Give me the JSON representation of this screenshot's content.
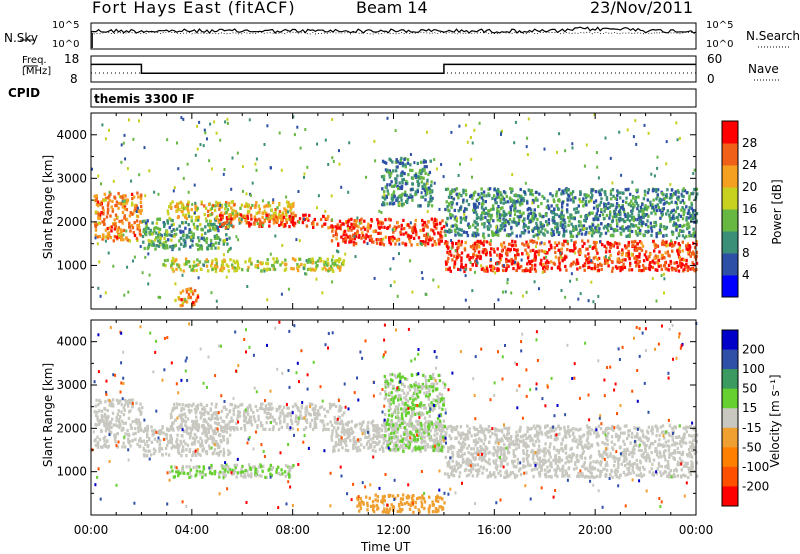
{
  "header": {
    "station": "Fort Hays East (fitACF)",
    "beam": "Beam 14",
    "date": "23/Nov/2011"
  },
  "noise_panel": {
    "left_label": "N.Sky",
    "right_label": "N.Search",
    "left_ticks": [
      "10^5",
      "10^0"
    ],
    "right_ticks": [
      "10^5",
      "10^0"
    ]
  },
  "freq_panel": {
    "left_label_line1": "Freq.",
    "left_label_line2": "[MHz]",
    "right_label": "Nave",
    "left_ticks": [
      "18",
      "8"
    ],
    "right_ticks": [
      "60",
      "0"
    ]
  },
  "cpid_panel": {
    "label": "CPID",
    "text": "themis 3300 IF"
  },
  "colors": {
    "power_scale": [
      "#0000ff",
      "#2d4fa5",
      "#3b8f78",
      "#66b843",
      "#c8d020",
      "#f5a020",
      "#f06018",
      "#ff0000"
    ],
    "velocity_scale": [
      "#0000c8",
      "#3050a8",
      "#3a9a60",
      "#66d030",
      "#c8c8c0",
      "#f0a030",
      "#ff7f00",
      "#ff5000",
      "#ff0000"
    ],
    "ground_scatter": "#b8b8b0"
  },
  "chart_data": [
    {
      "type": "heatmap",
      "name": "power",
      "xlabel": "",
      "ylabel": "Slant Range [km]",
      "xlim": [
        "00:00",
        "24:00"
      ],
      "ylim": [
        0,
        4500
      ],
      "yticks": [
        "1000",
        "2000",
        "3000",
        "4000"
      ],
      "colorbar_label": "Power [dB]",
      "colorbar_ticks": [
        "4",
        "8",
        "12",
        "16",
        "20",
        "24",
        "28"
      ],
      "colorbar_range": [
        0,
        32
      ],
      "bands": [
        {
          "t_start": 0.1,
          "t_end": 2.0,
          "r_start": 1600,
          "r_end": 2700,
          "level": 24
        },
        {
          "t_start": 2.0,
          "t_end": 5.5,
          "r_start": 1400,
          "r_end": 2100,
          "level": 12
        },
        {
          "t_start": 3.0,
          "t_end": 8.0,
          "r_start": 2100,
          "r_end": 2500,
          "level": 20
        },
        {
          "t_start": 5.0,
          "t_end": 9.5,
          "r_start": 1900,
          "r_end": 2200,
          "level": 26
        },
        {
          "t_start": 2.8,
          "t_end": 10.0,
          "r_start": 900,
          "r_end": 1200,
          "level": 18
        },
        {
          "t_start": 9.5,
          "t_end": 14.0,
          "r_start": 1500,
          "r_end": 2100,
          "level": 28
        },
        {
          "t_start": 14.0,
          "t_end": 24.0,
          "r_start": 900,
          "r_end": 1600,
          "level": 28
        },
        {
          "t_start": 14.0,
          "t_end": 24.0,
          "r_start": 1700,
          "r_end": 2800,
          "level": 10
        },
        {
          "t_start": 11.5,
          "t_end": 13.5,
          "r_start": 2400,
          "r_end": 3500,
          "level": 10
        },
        {
          "t_start": 3.3,
          "t_end": 4.2,
          "r_start": 100,
          "r_end": 500,
          "level": 24
        }
      ]
    },
    {
      "type": "heatmap",
      "name": "velocity",
      "xlabel": "Time UT",
      "ylabel": "Slant Range [km]",
      "xlim": [
        "00:00",
        "24:00"
      ],
      "ylim": [
        0,
        4500
      ],
      "xticks": [
        "00:00",
        "04:00",
        "08:00",
        "12:00",
        "16:00",
        "20:00",
        "00:00"
      ],
      "yticks": [
        "1000",
        "2000",
        "3000",
        "4000"
      ],
      "colorbar_label": "Velocity [m s⁻¹]",
      "colorbar_ticks": [
        "200",
        "100",
        "50",
        "15",
        "-15",
        "-50",
        "-100",
        "-200"
      ],
      "bands": [
        {
          "t_start": 0.1,
          "t_end": 2.0,
          "r_start": 1600,
          "r_end": 2700,
          "level": 0
        },
        {
          "t_start": 2.0,
          "t_end": 5.5,
          "r_start": 1400,
          "r_end": 2100,
          "level": 0
        },
        {
          "t_start": 3.0,
          "t_end": 10.0,
          "r_start": 2000,
          "r_end": 2600,
          "level": 0
        },
        {
          "t_start": 3.0,
          "t_end": 8.0,
          "r_start": 900,
          "r_end": 1200,
          "level": 30
        },
        {
          "t_start": 9.5,
          "t_end": 14.0,
          "r_start": 1500,
          "r_end": 2200,
          "level": 0
        },
        {
          "t_start": 14.0,
          "t_end": 24.0,
          "r_start": 900,
          "r_end": 2100,
          "level": 0
        },
        {
          "t_start": 11.6,
          "t_end": 14.0,
          "r_start": 1500,
          "r_end": 3300,
          "level": 30
        },
        {
          "t_start": 10.5,
          "t_end": 14.0,
          "r_start": 100,
          "r_end": 500,
          "level": -60
        }
      ]
    }
  ]
}
